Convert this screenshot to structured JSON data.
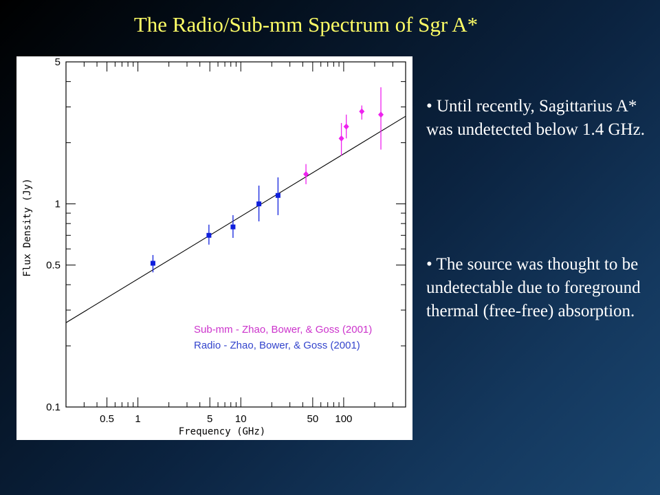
{
  "slide": {
    "title": "The Radio/Sub-mm  Spectrum of Sgr A*",
    "bullets": [
      "• Until recently, Sagittarius A* was undetected below 1.4 GHz.",
      "• The source was thought to be undetectable due to foreground thermal (free-free) absorption."
    ]
  },
  "chart_data": {
    "type": "scatter",
    "xlabel": "Frequency (GHz)",
    "ylabel": "Flux Density (Jy)",
    "xscale": "log",
    "yscale": "log",
    "xlim": [
      0.2,
      400
    ],
    "ylim": [
      0.1,
      5
    ],
    "x_ticks": [
      {
        "value": 0.5,
        "label": "0.5"
      },
      {
        "value": 1,
        "label": "1"
      },
      {
        "value": 5,
        "label": "5"
      },
      {
        "value": 10,
        "label": "10"
      },
      {
        "value": 50,
        "label": "50"
      },
      {
        "value": 100,
        "label": "100"
      }
    ],
    "y_ticks": [
      {
        "value": 0.1,
        "label": "0.1"
      },
      {
        "value": 0.5,
        "label": "0.5"
      },
      {
        "value": 1,
        "label": "1"
      },
      {
        "value": 5,
        "label": "5"
      }
    ],
    "series": [
      {
        "name": "Radio - Zhao, Bower, & Goss (2001)",
        "color": "#1020dd",
        "marker": "square",
        "points": [
          {
            "x": 1.4,
            "y": 0.51,
            "ylow": 0.46,
            "yhigh": 0.56
          },
          {
            "x": 4.9,
            "y": 0.7,
            "ylow": 0.63,
            "yhigh": 0.79
          },
          {
            "x": 8.4,
            "y": 0.77,
            "ylow": 0.68,
            "yhigh": 0.88
          },
          {
            "x": 15,
            "y": 1.0,
            "ylow": 0.82,
            "yhigh": 1.23
          },
          {
            "x": 23,
            "y": 1.1,
            "ylow": 0.88,
            "yhigh": 1.35
          }
        ]
      },
      {
        "name": "Sub-mm - Zhao, Bower, & Goss (2001)",
        "color": "#ee22ee",
        "marker": "diamond",
        "points": [
          {
            "x": 43,
            "y": 1.4,
            "ylow": 1.25,
            "yhigh": 1.57
          },
          {
            "x": 95,
            "y": 2.1,
            "ylow": 1.73,
            "yhigh": 2.5
          },
          {
            "x": 106,
            "y": 2.4,
            "ylow": 2.1,
            "yhigh": 2.75
          },
          {
            "x": 150,
            "y": 2.85,
            "ylow": 2.6,
            "yhigh": 3.05
          },
          {
            "x": 230,
            "y": 2.75,
            "ylow": 1.85,
            "yhigh": 3.75
          }
        ]
      }
    ],
    "fit_line": {
      "x": [
        0.2,
        400
      ],
      "y": [
        0.26,
        2.7
      ],
      "color": "#000000"
    },
    "legend": "lower-right"
  }
}
